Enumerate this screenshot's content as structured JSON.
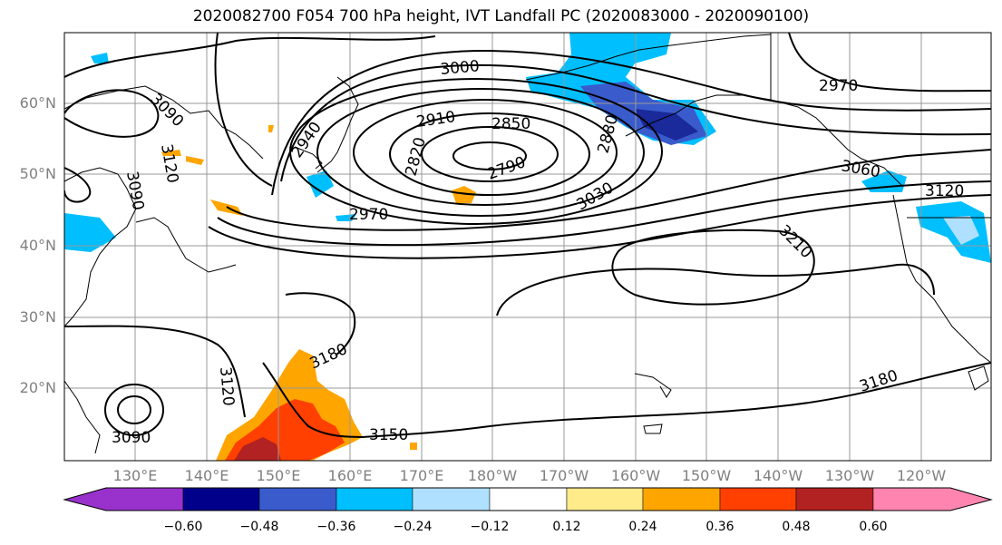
{
  "title": "2020082700 F054 700 hPa height, IVT Landfall PC (2020083000 - 2020090100)",
  "lat_labels": [
    "60°N",
    "50°N",
    "40°N",
    "30°N",
    "20°N"
  ],
  "lon_labels": [
    "130°E",
    "140°E",
    "150°E",
    "160°E",
    "170°E",
    "180°W",
    "170°W",
    "160°W",
    "150°W",
    "140°W",
    "130°W",
    "120°W"
  ],
  "contour_labels": [
    "3090",
    "3120",
    "3090",
    "2940",
    "2910",
    "2850",
    "2820",
    "2790",
    "2880",
    "3000",
    "3030",
    "2970",
    "2970",
    "3060",
    "3120",
    "3210",
    "3180",
    "3120",
    "3090",
    "3150",
    "3180"
  ],
  "colorbar": {
    "colors": [
      "#9932CC",
      "#00008B",
      "#3A5BCC",
      "#00BFFF",
      "#B0E0FF",
      "#FFFFFF",
      "#FFEB8A",
      "#FFA500",
      "#FF4000",
      "#B22222",
      "#FF85B0"
    ],
    "tick_labels": [
      "−0.60",
      "−0.48",
      "−0.36",
      "−0.24",
      "−0.12",
      "0.12",
      "0.24",
      "0.36",
      "0.48",
      "0.60"
    ]
  }
}
